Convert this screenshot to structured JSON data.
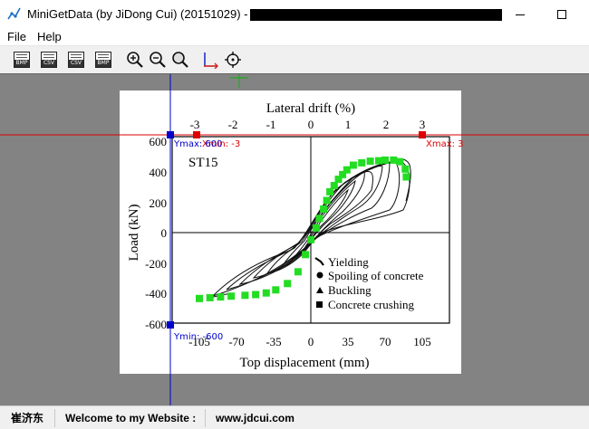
{
  "window": {
    "title": "MiniGetData (by JiDong Cui) (20151029) -",
    "title_redacted": true
  },
  "menu": {
    "items": [
      "File",
      "Help"
    ]
  },
  "toolbar": {
    "buttons": [
      {
        "name": "open-image-button",
        "label": "BMP",
        "icon": "open-image-icon"
      },
      {
        "name": "open-csv-button",
        "label": "CSV",
        "icon": "csv-file-icon"
      },
      {
        "name": "save-csv-button",
        "label": "CSV",
        "icon": "save-csv-icon"
      },
      {
        "name": "save-bmp-button",
        "label": "BMP",
        "icon": "save-bmp-icon"
      },
      {
        "name": "zoom-in-button",
        "icon": "zoom-in-icon"
      },
      {
        "name": "zoom-out-button",
        "icon": "zoom-out-icon"
      },
      {
        "name": "zoom-fit-button",
        "icon": "zoom-fit-icon"
      },
      {
        "name": "axis-button",
        "icon": "axis-icon"
      },
      {
        "name": "pick-point-button",
        "icon": "crosshair-icon"
      }
    ]
  },
  "plot": {
    "top_axis_label": "Lateral drift (%)",
    "top_ticks": [
      "-3",
      "-2",
      "-1",
      "0",
      "1",
      "2",
      "3"
    ],
    "bottom_axis_label": "Top displacement (mm)",
    "bottom_ticks": [
      "-105",
      "-70",
      "-35",
      "0",
      "35",
      "70",
      "105"
    ],
    "y_axis_label": "Load (kN)",
    "y_ticks": [
      "600",
      "400",
      "200",
      "0",
      "-200",
      "-400",
      "-600"
    ],
    "specimen": "ST15",
    "legend": [
      "Yielding",
      "Spoiling of concrete",
      "Buckling",
      "Concrete crushing"
    ]
  },
  "calibration": {
    "xmin": "Xmin: -3",
    "xmax": "Xmax: 3",
    "ymax": "Ymax: 600",
    "ymin": "Ymin: -600"
  },
  "digitized_points": {
    "color": "#22dd22",
    "points": [
      [
        -105,
        -420
      ],
      [
        -95,
        -415
      ],
      [
        -85,
        -410
      ],
      [
        -75,
        -405
      ],
      [
        -62,
        -400
      ],
      [
        -52,
        -395
      ],
      [
        -42,
        -385
      ],
      [
        -33,
        -365
      ],
      [
        -22,
        -325
      ],
      [
        -12,
        -250
      ],
      [
        -5,
        -140
      ],
      [
        0,
        -45
      ],
      [
        5,
        30
      ],
      [
        8,
        90
      ],
      [
        12,
        150
      ],
      [
        15,
        205
      ],
      [
        18,
        260
      ],
      [
        22,
        300
      ],
      [
        26,
        340
      ],
      [
        30,
        370
      ],
      [
        34,
        400
      ],
      [
        40,
        430
      ],
      [
        48,
        445
      ],
      [
        56,
        455
      ],
      [
        64,
        458
      ],
      [
        70,
        462
      ],
      [
        78,
        462
      ],
      [
        84,
        452
      ],
      [
        89,
        405
      ],
      [
        90,
        355
      ]
    ]
  },
  "status": {
    "author": "崔济东",
    "welcome": "Welcome to my Website :",
    "website": "www.jdcui.com"
  },
  "colors": {
    "canvas_bg": "#838383",
    "calib_x": "#dd0000",
    "calib_y": "#0000cc",
    "crosshair": "#22aa22"
  }
}
